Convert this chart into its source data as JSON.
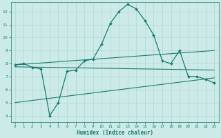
{
  "xlabel": "Humidex (Indice chaleur)",
  "xlim": [
    -0.5,
    23.5
  ],
  "ylim": [
    3.5,
    12.7
  ],
  "yticks": [
    4,
    5,
    6,
    7,
    8,
    9,
    10,
    11,
    12
  ],
  "xticks": [
    0,
    1,
    2,
    3,
    4,
    5,
    6,
    7,
    8,
    9,
    10,
    11,
    12,
    13,
    14,
    15,
    16,
    17,
    18,
    19,
    20,
    21,
    22,
    23
  ],
  "bg_color": "#cceae7",
  "line_color": "#1a7a6e",
  "grid_color": "#b0d8d4",
  "series1_x": [
    0,
    1,
    2,
    3,
    4,
    5,
    6,
    7,
    8,
    9,
    10,
    11,
    12,
    13,
    14,
    15,
    16,
    17,
    18,
    19,
    20,
    21,
    22,
    23
  ],
  "series1_y": [
    7.9,
    8.0,
    7.7,
    7.6,
    4.0,
    5.0,
    7.4,
    7.5,
    8.2,
    8.35,
    9.5,
    11.1,
    12.0,
    12.55,
    12.2,
    11.3,
    10.2,
    8.2,
    8.0,
    9.0,
    7.0,
    7.0,
    6.8,
    6.5
  ],
  "series2_x": [
    0,
    23
  ],
  "series2_y": [
    7.9,
    9.0
  ],
  "series3_x": [
    0,
    23
  ],
  "series3_y": [
    5.0,
    6.9
  ],
  "series4_x": [
    0,
    23
  ],
  "series4_y": [
    7.75,
    7.5
  ]
}
